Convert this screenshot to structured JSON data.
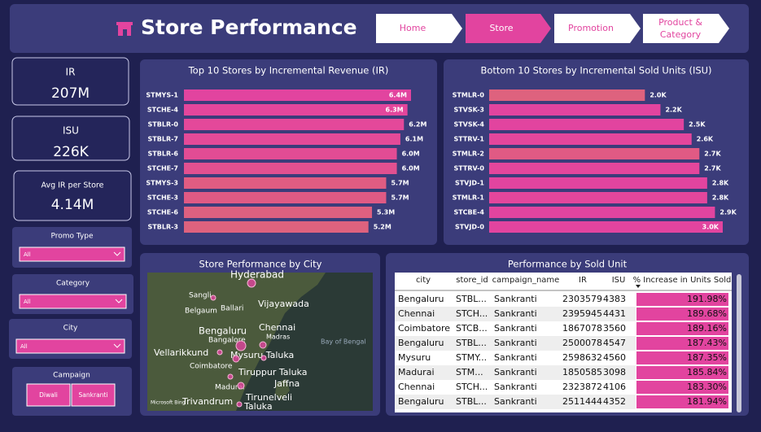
{
  "header": {
    "title": "Store Performance",
    "nav": [
      "Home",
      "Store",
      "Promotion",
      "Product &",
      "Category"
    ]
  },
  "kpis": [
    {
      "label": "IR",
      "value": "207M"
    },
    {
      "label": "ISU",
      "value": "226K"
    },
    {
      "label": "Avg IR per Store",
      "value": "4.14M"
    }
  ],
  "filters": [
    {
      "label": "Promo Type",
      "value": "All"
    },
    {
      "label": "Category",
      "value": "All"
    },
    {
      "label": "City",
      "value": "All"
    }
  ],
  "campaign": {
    "label": "Campaign",
    "options": [
      "Diwali",
      "Sankranti"
    ]
  },
  "chart_data": [
    {
      "type": "bar",
      "orientation": "horizontal",
      "title": "Top 10 Stores by Incremental Revenue (IR)",
      "categories": [
        "STMYS-1",
        "STCHE-4",
        "STBLR-0",
        "STBLR-7",
        "STBLR-6",
        "STCHE-7",
        "STMYS-3",
        "STCHE-3",
        "STCHE-6",
        "STBLR-3"
      ],
      "values": [
        6.4,
        6.3,
        6.2,
        6.1,
        6.0,
        6.0,
        5.7,
        5.7,
        5.3,
        5.2
      ],
      "value_labels": [
        "6.4M",
        "6.3M",
        "6.2M",
        "6.1M",
        "6.0M",
        "6.0M",
        "5.7M",
        "5.7M",
        "5.3M",
        "5.2M"
      ],
      "colors": [
        "#e2449f",
        "#e4469c",
        "#e4489a",
        "#e44a98",
        "#e24c94",
        "#e25090",
        "#e05c82",
        "#e05a84",
        "#de6080",
        "#de627e"
      ]
    },
    {
      "type": "bar",
      "orientation": "horizontal",
      "title": "Bottom 10 Stores by Incremental Sold Units (ISU)",
      "categories": [
        "STMLR-0",
        "STVSK-3",
        "STVSK-4",
        "STTRV-1",
        "STMLR-2",
        "STTRV-0",
        "STVJD-1",
        "STMLR-1",
        "STCBE-4",
        "STVJD-0"
      ],
      "values": [
        2.0,
        2.2,
        2.5,
        2.6,
        2.7,
        2.7,
        2.8,
        2.8,
        2.9,
        3.0
      ],
      "value_labels": [
        "2.0K",
        "2.2K",
        "2.5K",
        "2.6K",
        "2.7K",
        "2.7K",
        "2.8K",
        "2.8K",
        "2.9K",
        "3.0K"
      ],
      "colors": [
        "#de627e",
        "#e2449f",
        "#e2449f",
        "#e4469c",
        "#e05a84",
        "#e4469c",
        "#e2449f",
        "#e4469c",
        "#e2449f",
        "#e2449f"
      ]
    }
  ],
  "map": {
    "title": "Store Performance by City",
    "labels": [
      "Hyderabad",
      "Vijayawada",
      "Sangli",
      "Belgaum",
      "Ballari",
      "Bengaluru",
      "Bangalore",
      "Chennai",
      "Madras",
      "Vellarikkund",
      "Mysuru Taluka",
      "Coimbatore",
      "Tiruppur Taluka",
      "Jaffna",
      "Madurai",
      "Tirunelveli",
      "Taluka",
      "Trivandrum",
      "Bay of Bengal",
      "Microsoft Bing"
    ]
  },
  "table": {
    "title": "Performance by Sold Unit",
    "columns": [
      "city",
      "store_id",
      "campaign_name",
      "IR",
      "ISU",
      "% Increase in Units Sold"
    ],
    "rows": [
      [
        "Bengaluru",
        "STBL...",
        "Sankranti",
        "2303579",
        "4383",
        "191.98%"
      ],
      [
        "Chennai",
        "STCH...",
        "Sankranti",
        "2395945",
        "4431",
        "189.68%"
      ],
      [
        "Coimbatore",
        "STCB...",
        "Sankranti",
        "1867078",
        "3560",
        "189.16%"
      ],
      [
        "Bengaluru",
        "STBL...",
        "Sankranti",
        "2500078",
        "4547",
        "187.43%"
      ],
      [
        "Mysuru",
        "STMY...",
        "Sankranti",
        "2598632",
        "4560",
        "187.35%"
      ],
      [
        "Madurai",
        "STM...",
        "Sankranti",
        "1850585",
        "3098",
        "185.84%"
      ],
      [
        "Chennai",
        "STCH...",
        "Sankranti",
        "2323872",
        "4106",
        "183.30%"
      ],
      [
        "Bengaluru",
        "STBL...",
        "Sankranti",
        "2511444",
        "4352",
        "181.94%"
      ]
    ]
  }
}
